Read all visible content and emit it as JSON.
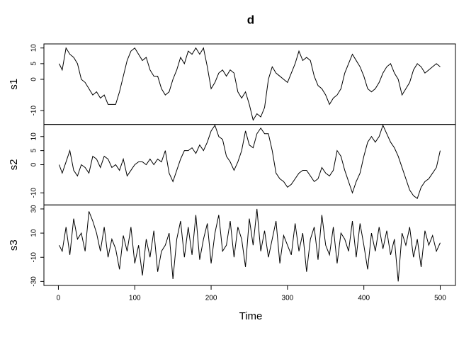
{
  "chart_data": {
    "type": "line",
    "title": "d",
    "x_label": "Time",
    "x": [
      1,
      5,
      10,
      15,
      20,
      25,
      30,
      35,
      40,
      45,
      50,
      55,
      60,
      65,
      70,
      75,
      80,
      85,
      90,
      95,
      100,
      105,
      110,
      115,
      120,
      125,
      130,
      135,
      140,
      145,
      150,
      155,
      160,
      165,
      170,
      175,
      180,
      185,
      190,
      195,
      200,
      205,
      210,
      215,
      220,
      225,
      230,
      235,
      240,
      245,
      250,
      255,
      260,
      265,
      270,
      275,
      280,
      285,
      290,
      295,
      300,
      305,
      310,
      315,
      320,
      325,
      330,
      335,
      340,
      345,
      350,
      355,
      360,
      365,
      370,
      375,
      380,
      385,
      390,
      395,
      400,
      405,
      410,
      415,
      420,
      425,
      430,
      435,
      440,
      445,
      450,
      455,
      460,
      465,
      470,
      475,
      480,
      485,
      490,
      495,
      500
    ],
    "xlim": [
      -18.96,
      519.96
    ],
    "xticks": [
      0,
      100,
      200,
      300,
      400,
      500
    ],
    "series": [
      {
        "name": "s1",
        "color": "#000000",
        "ylim": [
          -14.4,
          11.3
        ],
        "yticks": [
          -10,
          0,
          5,
          10
        ],
        "values": [
          5,
          3,
          10,
          8,
          7,
          5,
          0,
          -1,
          -3,
          -5,
          -4,
          -6,
          -5,
          -8,
          -8,
          -8,
          -4,
          1,
          6,
          9,
          10,
          8,
          6,
          7,
          3,
          1,
          1,
          -3,
          -5,
          -4,
          0,
          3,
          7,
          5,
          9,
          8,
          10,
          8,
          10,
          4,
          -3,
          -1,
          2,
          3,
          1,
          3,
          2,
          -4,
          -6,
          -4,
          -8,
          -13,
          -11,
          -12,
          -9,
          0,
          4,
          2,
          1,
          0,
          -1,
          2,
          5,
          9,
          6,
          7,
          6,
          1,
          -2,
          -3,
          -5,
          -8,
          -6,
          -5,
          -3,
          2,
          5,
          8,
          6,
          4,
          1,
          -3,
          -4,
          -3,
          -1,
          2,
          4,
          5,
          2,
          0,
          -5,
          -3,
          -1,
          3,
          5,
          4,
          2,
          3,
          4,
          5,
          4
        ]
      },
      {
        "name": "s2",
        "color": "#000000",
        "ylim": [
          -14.3,
          14.3
        ],
        "yticks": [
          -10,
          0,
          5,
          10
        ],
        "values": [
          0,
          -3,
          1,
          5,
          -2,
          -4,
          0,
          -1,
          -3,
          3,
          2,
          -1,
          3,
          2,
          -1,
          0,
          -2,
          2,
          -4,
          -2,
          0,
          1,
          1,
          0,
          2,
          0,
          2,
          1,
          5,
          -3,
          -6,
          -2,
          2,
          5,
          5,
          6,
          4,
          7,
          5,
          8,
          12,
          14,
          10,
          9,
          3,
          1,
          -2,
          1,
          5,
          12,
          7,
          6,
          11,
          13,
          11,
          11,
          5,
          -3,
          -5,
          -6,
          -8,
          -7,
          -5,
          -3,
          -2,
          -2,
          -4,
          -6,
          -5,
          -1,
          -3,
          -4,
          -2,
          5,
          3,
          -2,
          -6,
          -10,
          -6,
          -3,
          3,
          8,
          10,
          8,
          10,
          14,
          11,
          8,
          6,
          3,
          -1,
          -5,
          -9,
          -11,
          -12,
          -8,
          -6,
          -5,
          -3,
          -1,
          5
        ]
      },
      {
        "name": "s3",
        "color": "#000000",
        "ylim": [
          -33.3,
          33.3
        ],
        "yticks": [
          -30,
          -10,
          10,
          30
        ],
        "values": [
          0,
          -5,
          15,
          -8,
          22,
          5,
          10,
          -5,
          28,
          20,
          10,
          -5,
          15,
          -10,
          5,
          -3,
          -20,
          8,
          -5,
          15,
          -15,
          0,
          -25,
          5,
          -10,
          12,
          -22,
          -5,
          0,
          10,
          -28,
          5,
          20,
          -10,
          15,
          -8,
          25,
          -12,
          5,
          18,
          -15,
          10,
          25,
          -5,
          0,
          20,
          -10,
          15,
          5,
          -18,
          22,
          0,
          30,
          -5,
          12,
          -10,
          5,
          20,
          -15,
          8,
          0,
          -8,
          18,
          -5,
          10,
          -22,
          5,
          15,
          -12,
          25,
          0,
          -8,
          15,
          -15,
          10,
          5,
          -5,
          20,
          -10,
          18,
          0,
          -20,
          10,
          -5,
          15,
          -3,
          12,
          -8,
          5,
          -30,
          10,
          0,
          15,
          -10,
          5,
          -18,
          12,
          0,
          8,
          -5,
          2
        ]
      }
    ]
  }
}
